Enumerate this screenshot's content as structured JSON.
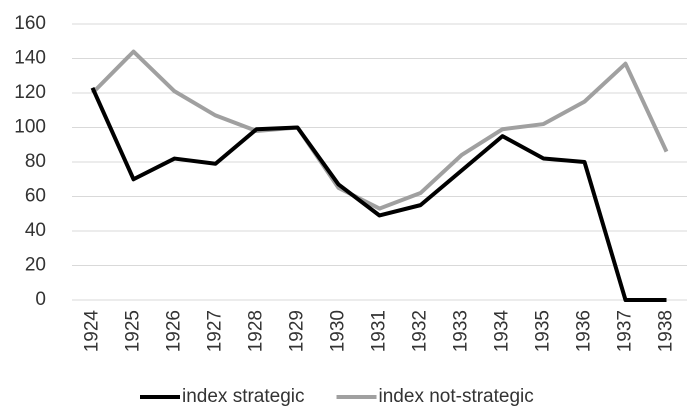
{
  "chart_data": {
    "type": "line",
    "categories": [
      "1924",
      "1925",
      "1926",
      "1927",
      "1928",
      "1929",
      "1930",
      "1931",
      "1932",
      "1933",
      "1934",
      "1935",
      "1936",
      "1937",
      "1938"
    ],
    "series": [
      {
        "name": "index strategic",
        "color": "#000000",
        "values": [
          123,
          70,
          82,
          79,
          99,
          100,
          67,
          49,
          55,
          75,
          95,
          82,
          80,
          0,
          0
        ]
      },
      {
        "name": "index not-strategic",
        "color": "#a0a0a0",
        "values": [
          120,
          144,
          121,
          107,
          98,
          100,
          65,
          53,
          62,
          84,
          99,
          102,
          115,
          137,
          86
        ]
      }
    ],
    "ylim": [
      0,
      160
    ],
    "yticks": [
      0,
      20,
      40,
      60,
      80,
      100,
      120,
      140,
      160
    ],
    "grid": true,
    "legend": "bottom"
  }
}
